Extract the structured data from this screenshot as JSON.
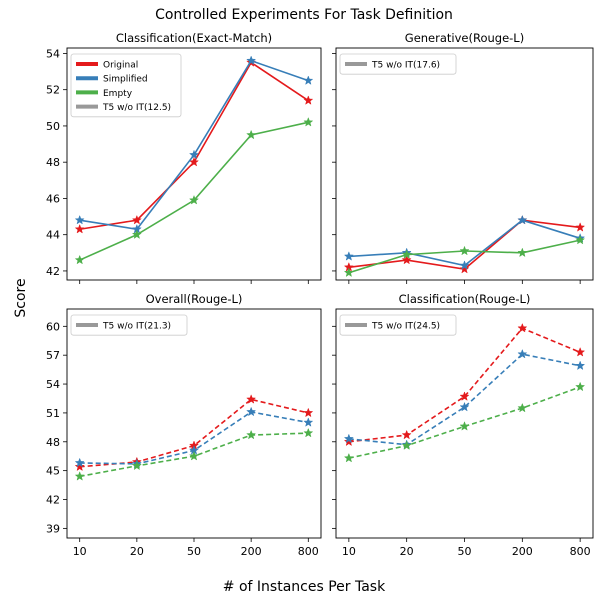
{
  "figure": {
    "title": "Controlled Experiments For Task Definition",
    "xlabel": "# of Instances Per Task",
    "ylabel": "Score"
  },
  "legend_labels": {
    "original": "Original",
    "simplified": "Simplified",
    "empty": "Empty"
  },
  "colors": {
    "original": "#e41a1c",
    "simplified": "#377eb8",
    "empty": "#4daf4a",
    "baseline": "#999999"
  },
  "chart_data": [
    {
      "type": "line",
      "title": "Classification(Exact-Match)",
      "categories": [
        "10",
        "20",
        "50",
        "200",
        "800"
      ],
      "ylim": [
        41.5,
        54.3
      ],
      "yticks": [
        42,
        44,
        46,
        48,
        50,
        52,
        54
      ],
      "line_style": "solid",
      "legend": "top-left",
      "baseline_label": "T5 w/o IT(12.5)",
      "series": [
        {
          "name": "Original",
          "key": "original",
          "values": [
            44.3,
            44.8,
            48.0,
            53.5,
            51.4
          ]
        },
        {
          "name": "Simplified",
          "key": "simplified",
          "values": [
            44.8,
            44.3,
            48.4,
            53.6,
            52.5
          ]
        },
        {
          "name": "Empty",
          "key": "empty",
          "values": [
            42.6,
            44.0,
            45.9,
            49.5,
            50.2
          ]
        }
      ]
    },
    {
      "type": "line",
      "title": "Generative(Rouge-L)",
      "categories": [
        "10",
        "20",
        "50",
        "200",
        "800"
      ],
      "ylim": [
        41.5,
        54.3
      ],
      "yticks": [
        42,
        44,
        46,
        48,
        50,
        52,
        54
      ],
      "line_style": "solid",
      "legend": "top-left",
      "baseline_label": "T5 w/o IT(17.6)",
      "series": [
        {
          "name": "Original",
          "key": "original",
          "values": [
            42.2,
            42.6,
            42.1,
            44.8,
            44.4
          ]
        },
        {
          "name": "Simplified",
          "key": "simplified",
          "values": [
            42.8,
            43.0,
            42.3,
            44.8,
            43.8
          ]
        },
        {
          "name": "Empty",
          "key": "empty",
          "values": [
            41.9,
            42.9,
            43.1,
            43.0,
            43.7
          ]
        }
      ]
    },
    {
      "type": "line",
      "title": "Overall(Rouge-L)",
      "categories": [
        "10",
        "20",
        "50",
        "200",
        "800"
      ],
      "ylim": [
        38.0,
        61.8
      ],
      "yticks": [
        39,
        42,
        45,
        48,
        51,
        54,
        57,
        60
      ],
      "line_style": "dashed",
      "legend": "top-left",
      "baseline_label": "T5 w/o IT(21.3)",
      "series": [
        {
          "name": "Original",
          "key": "original",
          "values": [
            45.4,
            45.9,
            47.6,
            52.4,
            51.0
          ]
        },
        {
          "name": "Simplified",
          "key": "simplified",
          "values": [
            45.8,
            45.7,
            47.1,
            51.1,
            50.0
          ]
        },
        {
          "name": "Empty",
          "key": "empty",
          "values": [
            44.4,
            45.5,
            46.5,
            48.7,
            48.9
          ]
        }
      ]
    },
    {
      "type": "line",
      "title": "Classification(Rouge-L)",
      "categories": [
        "10",
        "20",
        "50",
        "200",
        "800"
      ],
      "ylim": [
        38.0,
        61.8
      ],
      "yticks": [
        39,
        42,
        45,
        48,
        51,
        54,
        57,
        60
      ],
      "line_style": "dashed",
      "legend": "top-left",
      "baseline_label": "T5 w/o IT(24.5)",
      "series": [
        {
          "name": "Original",
          "key": "original",
          "values": [
            48.0,
            48.7,
            52.7,
            59.8,
            57.3
          ]
        },
        {
          "name": "Simplified",
          "key": "simplified",
          "values": [
            48.3,
            47.7,
            51.6,
            57.1,
            55.9
          ]
        },
        {
          "name": "Empty",
          "key": "empty",
          "values": [
            46.3,
            47.6,
            49.6,
            51.5,
            53.7
          ]
        }
      ]
    }
  ]
}
